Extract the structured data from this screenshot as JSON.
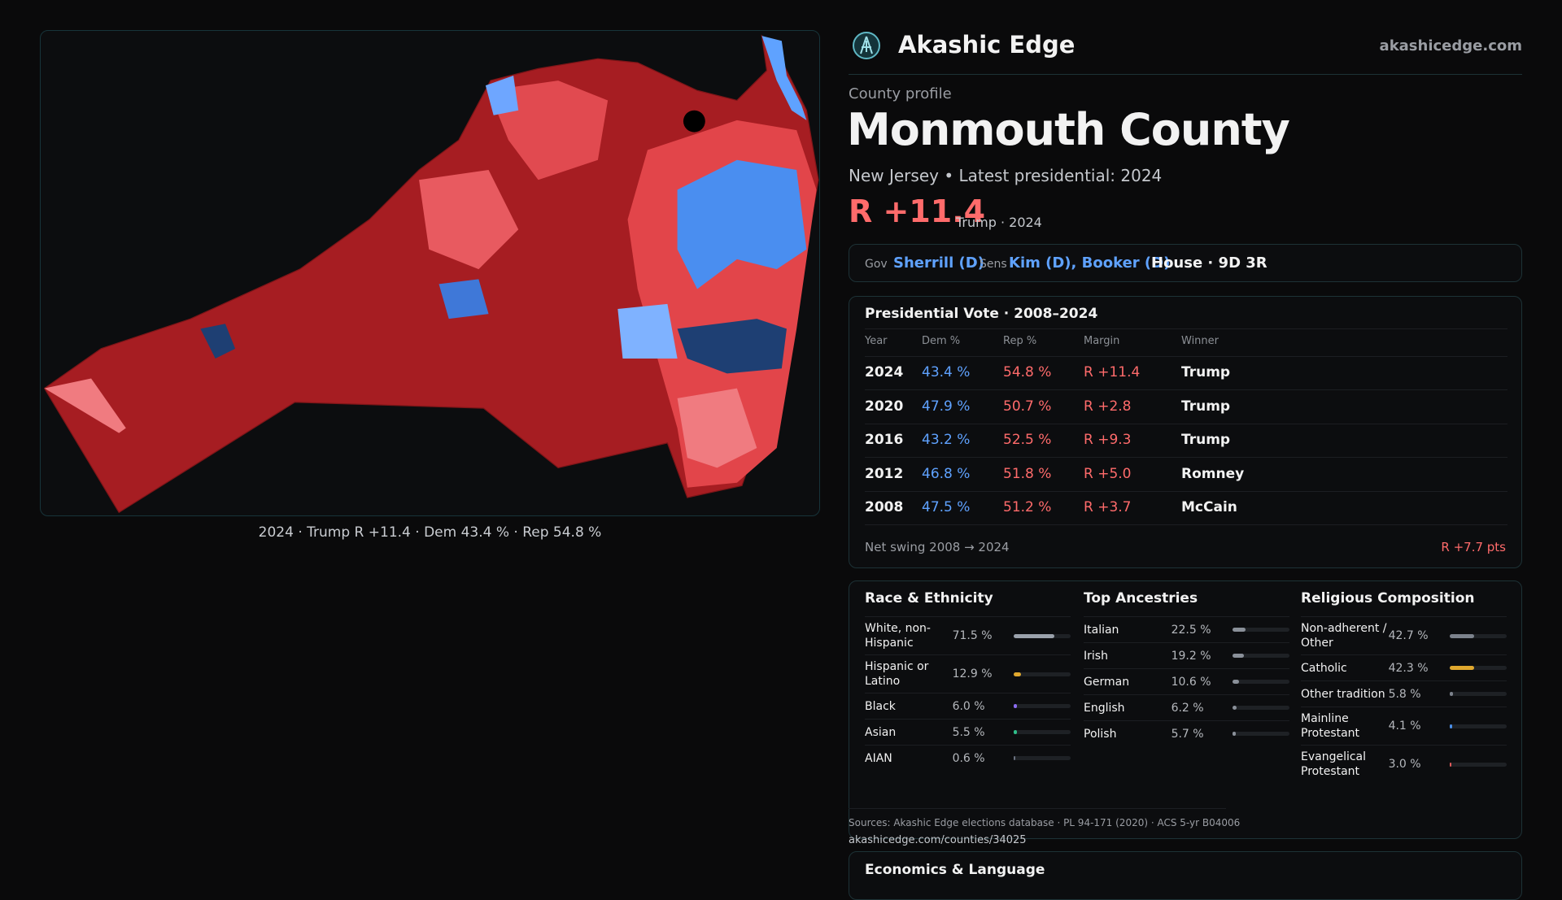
{
  "header": {
    "brand": "Akashic Edge",
    "site": "akashicedge.com"
  },
  "map": {
    "caption": "2024 · Trump R +11.4 · Dem 43.4 % · Rep 54.8 %"
  },
  "profile": {
    "eyebrow": "County profile",
    "name": "Monmouth County",
    "subtitle": "New Jersey • Latest presidential: 2024",
    "margin": "R +11.4",
    "margin_note": "Trump · 2024"
  },
  "officials": {
    "gov_label": "Gov",
    "gov": "Sherrill (D)",
    "sens_label": "Sens",
    "sens": "Kim (D), Booker (D)",
    "house": "House · 9D 3R"
  },
  "vote": {
    "title": "Presidential Vote · 2008–2024",
    "columns": [
      "Year",
      "Dem %",
      "Rep %",
      "Margin",
      "Winner"
    ],
    "rows": [
      [
        "2024",
        "43.4 %",
        "54.8 %",
        "R +11.4",
        "Trump"
      ],
      [
        "2020",
        "47.9 %",
        "50.7 %",
        "R +2.8",
        "Trump"
      ],
      [
        "2016",
        "43.2 %",
        "52.5 %",
        "R +9.3",
        "Trump"
      ],
      [
        "2012",
        "46.8 %",
        "51.8 %",
        "R +5.0",
        "Romney"
      ],
      [
        "2008",
        "47.5 %",
        "51.2 %",
        "R +3.7",
        "McCain"
      ]
    ],
    "swing_label": "Net swing 2008 → 2024",
    "swing": "R +7.7 pts"
  },
  "demographics": [
    {
      "title": "Race & Ethnicity",
      "items": [
        {
          "label": "White, non-Hispanic",
          "value": 71.5,
          "value_label": "71.5 %",
          "color": "#9aa1ab"
        },
        {
          "label": "Hispanic or Latino",
          "value": 12.9,
          "value_label": "12.9 %",
          "color": "#e0a82e"
        },
        {
          "label": "Black",
          "value": 6.0,
          "value_label": "6.0 %",
          "color": "#8b6cf0"
        },
        {
          "label": "Asian",
          "value": 5.5,
          "value_label": "5.5 %",
          "color": "#2fbf8a"
        },
        {
          "label": "AIAN",
          "value": 0.6,
          "value_label": "0.6 %",
          "color": "#6b7280"
        }
      ]
    },
    {
      "title": "Top Ancestries",
      "items": [
        {
          "label": "Italian",
          "value": 22.5,
          "value_label": "22.5 %",
          "color": "#8a9099"
        },
        {
          "label": "Irish",
          "value": 19.2,
          "value_label": "19.2 %",
          "color": "#8a9099"
        },
        {
          "label": "German",
          "value": 10.6,
          "value_label": "10.6 %",
          "color": "#8a9099"
        },
        {
          "label": "English",
          "value": 6.2,
          "value_label": "6.2 %",
          "color": "#8a9099"
        },
        {
          "label": "Polish",
          "value": 5.7,
          "value_label": "5.7 %",
          "color": "#8a9099"
        }
      ]
    },
    {
      "title": "Religious Composition",
      "items": [
        {
          "label": "Non-adherent / Other",
          "value": 42.7,
          "value_label": "42.7 %",
          "color": "#7c828c"
        },
        {
          "label": "Catholic",
          "value": 42.3,
          "value_label": "42.3 %",
          "color": "#e0a82e"
        },
        {
          "label": "Other tradition",
          "value": 5.8,
          "value_label": "5.8 %",
          "color": "#7c828c"
        },
        {
          "label": "Mainline Protestant",
          "value": 4.1,
          "value_label": "4.1 %",
          "color": "#4a8fe8"
        },
        {
          "label": "Evangelical Protestant",
          "value": 3.0,
          "value_label": "3.0 %",
          "color": "#e05a5a"
        }
      ]
    }
  ],
  "sources": "Sources: Akashic Edge elections database · PL 94-171 (2020) · ACS 5-yr B04006",
  "url": "akashicedge.com/counties/34025",
  "economics": {
    "title": "Economics & Language"
  }
}
